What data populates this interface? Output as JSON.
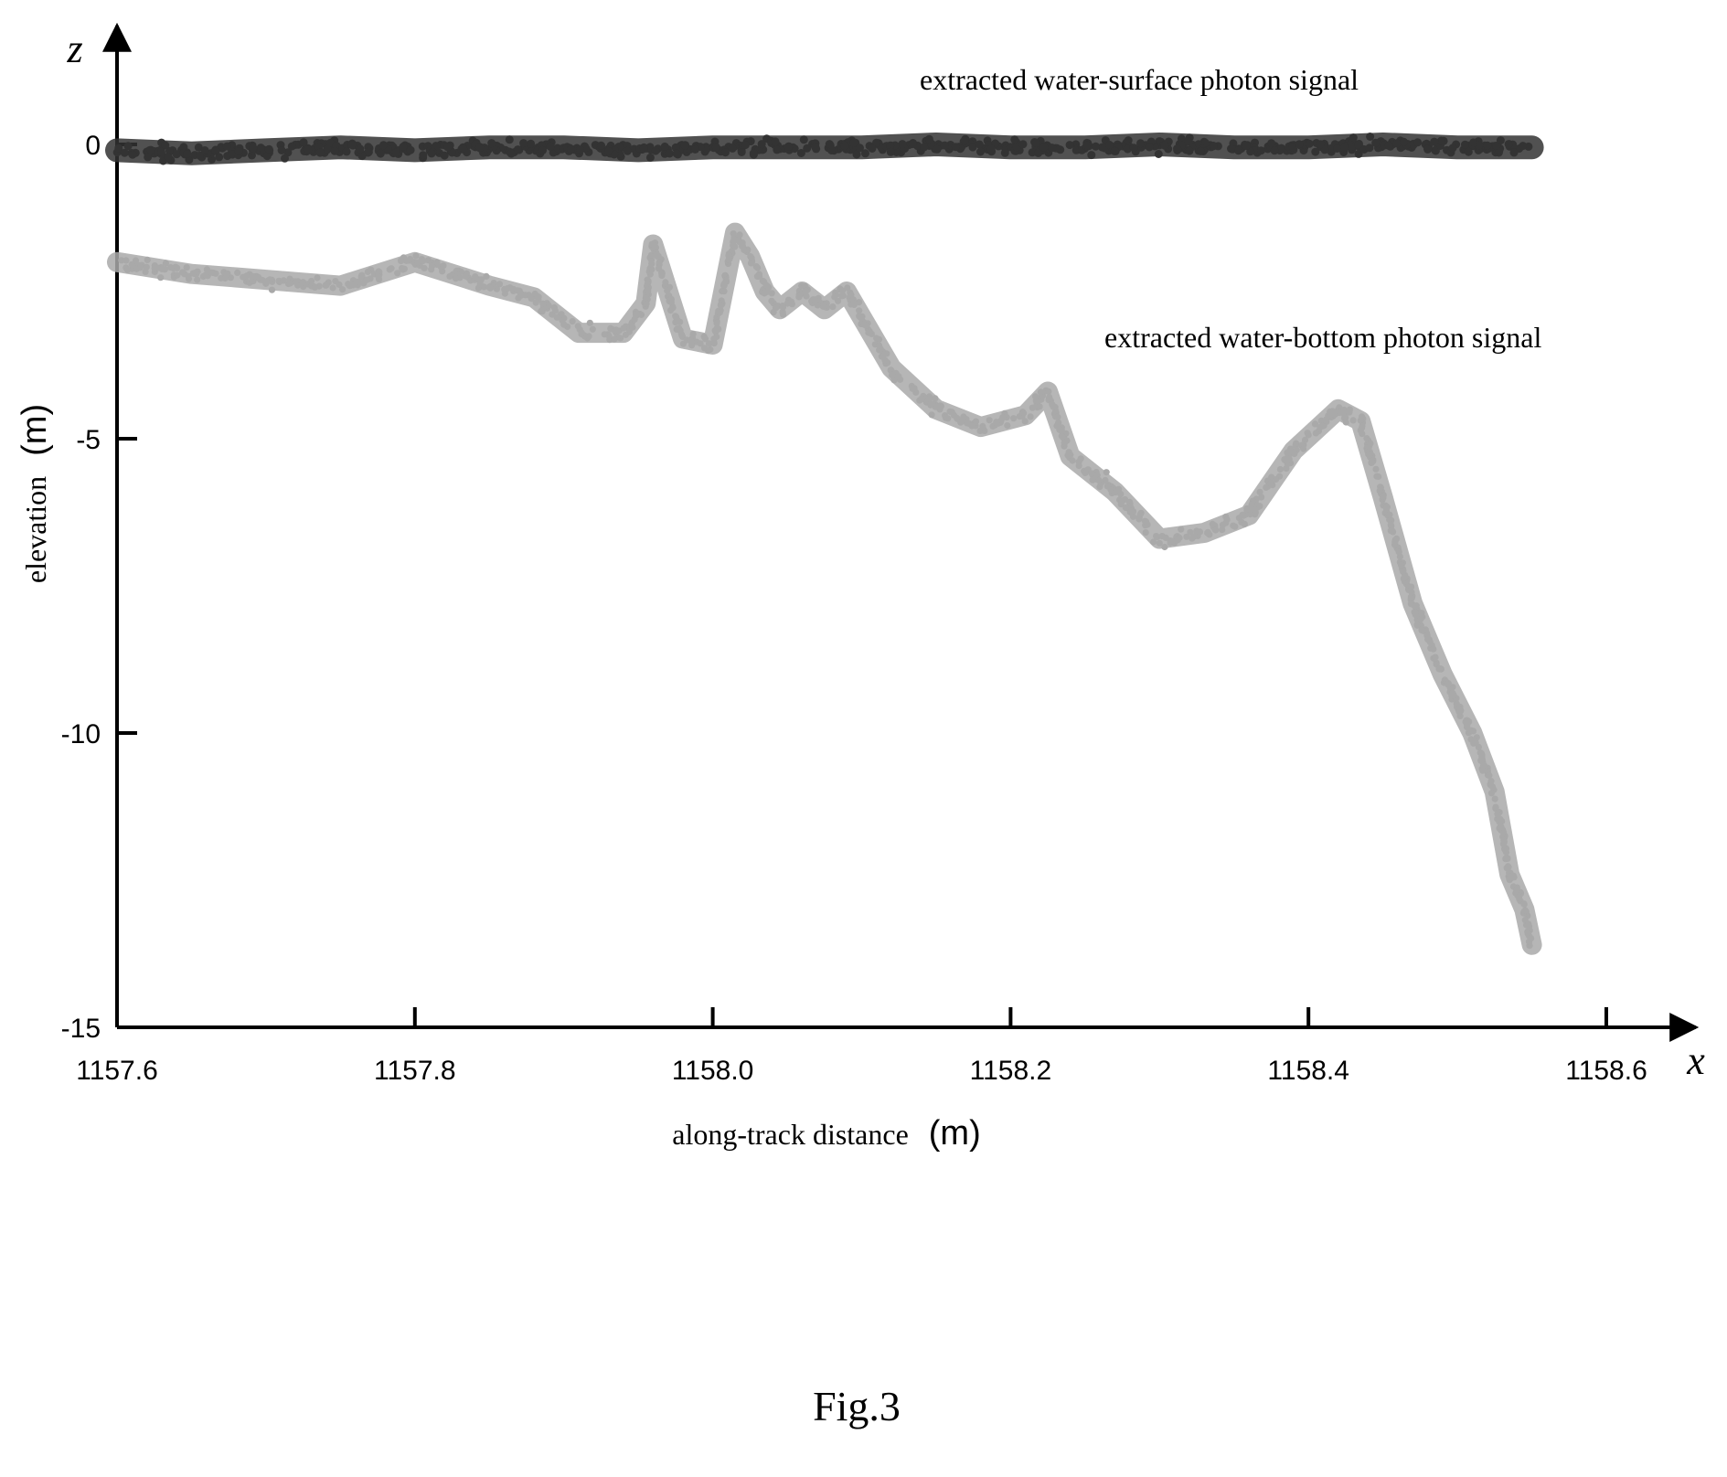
{
  "chart_data": {
    "type": "scatter",
    "xlim": [
      1157.6,
      1158.6
    ],
    "ylim": [
      -15,
      0
    ],
    "x_ticks": [
      1157.6,
      1157.8,
      1158.0,
      1158.2,
      1158.4,
      1158.6
    ],
    "x_tick_labels": [
      "1157.6",
      "1157.8",
      "1158.0",
      "1158.2",
      "1158.4",
      "1158.6"
    ],
    "y_ticks": [
      0,
      -5,
      -10,
      -15
    ],
    "y_tick_labels": [
      "0",
      "-5",
      "-10",
      "-15"
    ],
    "x_axis_var": "x",
    "y_axis_var": "z",
    "xlabel": "along-track distance",
    "xlabel_unit": "(m)",
    "ylabel": "elevation",
    "ylabel_unit": "(m)",
    "grid": false,
    "caption": "Fig.3",
    "annotations": [
      {
        "text": "extracted water-surface photon signal",
        "series": "water-surface"
      },
      {
        "text": "extracted water-bottom photon signal",
        "series": "water-bottom"
      }
    ],
    "series": [
      {
        "id": "water-surface",
        "color": "#333333",
        "x": [
          1157.6,
          1157.65,
          1157.7,
          1157.75,
          1157.8,
          1157.85,
          1157.9,
          1157.95,
          1158.0,
          1158.05,
          1158.1,
          1158.15,
          1158.2,
          1158.25,
          1158.3,
          1158.35,
          1158.4,
          1158.45,
          1158.5,
          1158.55
        ],
        "y": [
          -0.1,
          -0.15,
          -0.1,
          -0.05,
          -0.1,
          -0.05,
          -0.05,
          -0.1,
          -0.05,
          -0.05,
          -0.05,
          0.0,
          -0.05,
          -0.05,
          0.0,
          -0.05,
          -0.05,
          0.0,
          -0.05,
          -0.05
        ]
      },
      {
        "id": "water-bottom",
        "color": "#a9a9a9",
        "x": [
          1157.6,
          1157.65,
          1157.7,
          1157.75,
          1157.8,
          1157.85,
          1157.88,
          1157.91,
          1157.94,
          1157.955,
          1157.96,
          1157.98,
          1158.0,
          1158.015,
          1158.025,
          1158.035,
          1158.045,
          1158.06,
          1158.075,
          1158.09,
          1158.12,
          1158.15,
          1158.18,
          1158.21,
          1158.225,
          1158.24,
          1158.27,
          1158.3,
          1158.33,
          1158.36,
          1158.39,
          1158.42,
          1158.435,
          1158.45,
          1158.47,
          1158.49,
          1158.51,
          1158.525,
          1158.535,
          1158.545,
          1158.55
        ],
        "y": [
          -2.0,
          -2.2,
          -2.3,
          -2.4,
          -2.0,
          -2.4,
          -2.6,
          -3.2,
          -3.2,
          -2.7,
          -1.7,
          -3.3,
          -3.4,
          -1.5,
          -1.9,
          -2.5,
          -2.8,
          -2.5,
          -2.8,
          -2.5,
          -3.8,
          -4.5,
          -4.8,
          -4.6,
          -4.2,
          -5.3,
          -5.9,
          -6.7,
          -6.6,
          -6.3,
          -5.2,
          -4.5,
          -4.7,
          -6.0,
          -7.8,
          -9.0,
          -10.0,
          -11.0,
          -12.4,
          -13.0,
          -13.6
        ]
      }
    ]
  }
}
